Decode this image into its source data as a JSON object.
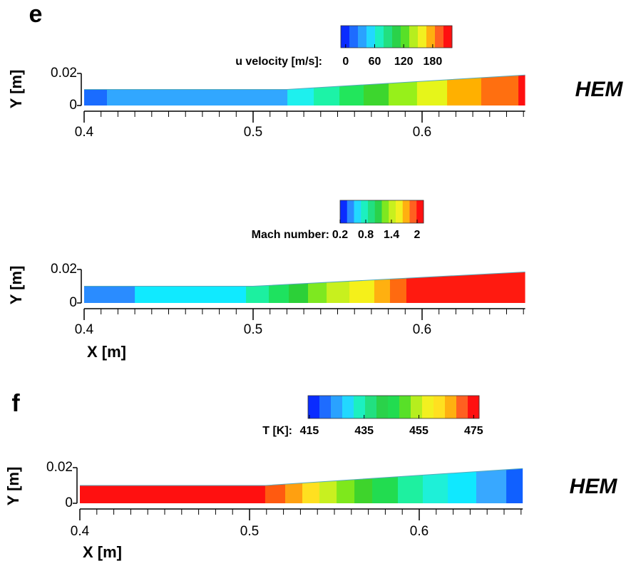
{
  "chart_data": [
    {
      "type": "contour",
      "panel": "e",
      "annotation": "HEM",
      "ylabel": "Y [m]",
      "xlim": [
        0.4,
        0.661
      ],
      "xticks": [
        0.4,
        0.5,
        0.6
      ],
      "xminorticks": [
        0.41,
        0.42,
        0.43,
        0.44,
        0.45,
        0.46,
        0.47,
        0.48,
        0.49,
        0.51,
        0.52,
        0.53,
        0.54,
        0.55,
        0.56,
        0.57,
        0.58,
        0.59,
        0.61,
        0.62,
        0.63,
        0.64,
        0.65,
        0.66
      ],
      "ylim": [
        0,
        0.02
      ],
      "yticks": [
        0,
        0.02
      ],
      "wall": {
        "x": [
          0.4,
          0.52,
          0.661
        ],
        "y": [
          0.01,
          0.01,
          0.019
        ]
      },
      "zones": [
        {
          "x0": 0.4,
          "x1": 0.4135,
          "color": "#1a6cff"
        },
        {
          "x0": 0.4135,
          "x1": 0.5203,
          "color": "#31a7ff"
        },
        {
          "x0": 0.5203,
          "x1": 0.5359,
          "color": "#1ef0ee"
        },
        {
          "x0": 0.5359,
          "x1": 0.5511,
          "color": "#1cf3a7"
        },
        {
          "x0": 0.5511,
          "x1": 0.5654,
          "color": "#22e65c"
        },
        {
          "x0": 0.5654,
          "x1": 0.5802,
          "color": "#3dd62e"
        },
        {
          "x0": 0.5802,
          "x1": 0.597,
          "color": "#97f01a"
        },
        {
          "x0": 0.597,
          "x1": 0.6148,
          "color": "#e6f51a"
        },
        {
          "x0": 0.6148,
          "x1": 0.635,
          "color": "#ffb000"
        },
        {
          "x0": 0.635,
          "x1": 0.657,
          "color": "#ff6f10"
        },
        {
          "x0": 0.657,
          "x1": 0.6612,
          "color": "#ff1010"
        }
      ],
      "colorbar": {
        "label": "u velocity [m/s]:",
        "lim": [
          -10,
          220
        ],
        "ticks": [
          0,
          60,
          120,
          180
        ],
        "colors": [
          "#0a2cff",
          "#1e6cff",
          "#2aa2ff",
          "#22d8ff",
          "#1cf0c0",
          "#22e080",
          "#2ad24a",
          "#58e028",
          "#b6ee1e",
          "#f2f020",
          "#ffb010",
          "#ff6020",
          "#ff1010"
        ]
      }
    },
    {
      "type": "contour",
      "ylabel": "Y [m]",
      "xlabel": "X [m]",
      "xlim": [
        0.4,
        0.661
      ],
      "xticks": [
        0.4,
        0.5,
        0.6
      ],
      "xminorticks": [
        0.41,
        0.42,
        0.43,
        0.44,
        0.45,
        0.46,
        0.47,
        0.48,
        0.49,
        0.51,
        0.52,
        0.53,
        0.54,
        0.55,
        0.56,
        0.57,
        0.58,
        0.59,
        0.61,
        0.62,
        0.63,
        0.64,
        0.65,
        0.66
      ],
      "ylim": [
        0,
        0.02
      ],
      "yticks": [
        0,
        0.02
      ],
      "wall": {
        "x": [
          0.4,
          0.5,
          0.661
        ],
        "y": [
          0.01,
          0.01,
          0.0185
        ]
      },
      "zones": [
        {
          "x0": 0.4,
          "x1": 0.43,
          "color": "#2a8cff"
        },
        {
          "x0": 0.43,
          "x1": 0.4958,
          "color": "#10eaff"
        },
        {
          "x0": 0.4958,
          "x1": 0.5093,
          "color": "#1cf0a0"
        },
        {
          "x0": 0.5093,
          "x1": 0.5211,
          "color": "#1ee25f"
        },
        {
          "x0": 0.5211,
          "x1": 0.5325,
          "color": "#2cd038"
        },
        {
          "x0": 0.5325,
          "x1": 0.5435,
          "color": "#7ee820"
        },
        {
          "x0": 0.5435,
          "x1": 0.557,
          "color": "#c8f01e"
        },
        {
          "x0": 0.557,
          "x1": 0.5717,
          "color": "#f5f01a"
        },
        {
          "x0": 0.5717,
          "x1": 0.581,
          "color": "#ffb010"
        },
        {
          "x0": 0.581,
          "x1": 0.5907,
          "color": "#ff6a10"
        },
        {
          "x0": 0.5907,
          "x1": 0.6612,
          "color": "#ff1a10"
        }
      ],
      "colorbar": {
        "label": "Mach number:",
        "lim": [
          0.2,
          2.15
        ],
        "ticks": [
          0.2,
          0.8,
          1.4,
          2
        ],
        "colors": [
          "#0a2cff",
          "#2a8cff",
          "#22d8ff",
          "#1cf0c0",
          "#22e080",
          "#2ad24a",
          "#7ee820",
          "#c8f01e",
          "#f2f020",
          "#ffb010",
          "#ff6020",
          "#ff1010"
        ]
      }
    },
    {
      "type": "contour",
      "panel": "f",
      "annotation": "HEM",
      "ylabel": "Y [m]",
      "xlabel": "X [m]",
      "xlim": [
        0.4,
        0.661
      ],
      "xticks": [
        0.4,
        0.5,
        0.6
      ],
      "xminorticks": [
        0.41,
        0.42,
        0.43,
        0.44,
        0.45,
        0.46,
        0.47,
        0.48,
        0.49,
        0.51,
        0.52,
        0.53,
        0.54,
        0.55,
        0.56,
        0.57,
        0.58,
        0.59,
        0.61,
        0.62,
        0.63,
        0.64,
        0.65,
        0.66
      ],
      "ylim": [
        0,
        0.02
      ],
      "yticks": [
        0,
        0.02
      ],
      "wall": {
        "x": [
          0.4,
          0.5092,
          0.661
        ],
        "y": [
          0.01,
          0.01,
          0.0195
        ]
      },
      "zones": [
        {
          "x0": 0.4,
          "x1": 0.5092,
          "color": "#ff1010"
        },
        {
          "x0": 0.5092,
          "x1": 0.521,
          "color": "#ff5a10"
        },
        {
          "x0": 0.521,
          "x1": 0.5311,
          "color": "#ffa010"
        },
        {
          "x0": 0.5311,
          "x1": 0.5412,
          "color": "#ffe020"
        },
        {
          "x0": 0.5412,
          "x1": 0.5513,
          "color": "#c8f020"
        },
        {
          "x0": 0.5513,
          "x1": 0.5618,
          "color": "#7ee81c"
        },
        {
          "x0": 0.5618,
          "x1": 0.5723,
          "color": "#3ed42c"
        },
        {
          "x0": 0.5723,
          "x1": 0.5874,
          "color": "#22dc50"
        },
        {
          "x0": 0.5874,
          "x1": 0.6021,
          "color": "#1ef0a0"
        },
        {
          "x0": 0.6021,
          "x1": 0.6168,
          "color": "#1ef0d8"
        },
        {
          "x0": 0.6168,
          "x1": 0.6336,
          "color": "#10e8ff"
        },
        {
          "x0": 0.6336,
          "x1": 0.6513,
          "color": "#38a8ff"
        },
        {
          "x0": 0.6513,
          "x1": 0.6609,
          "color": "#1060ff"
        }
      ],
      "colorbar": {
        "label": "T [K]:",
        "lim": [
          414.5,
          477
        ],
        "ticks": [
          415,
          435,
          455,
          475
        ],
        "colors": [
          "#0a2cff",
          "#1e6cff",
          "#2aa2ff",
          "#22d8ff",
          "#1cf0c0",
          "#22e080",
          "#2ad24a",
          "#22dc50",
          "#58e028",
          "#b6ee1e",
          "#f2f020",
          "#ffe020",
          "#ffb010",
          "#ff6020",
          "#ff1010"
        ]
      }
    }
  ]
}
